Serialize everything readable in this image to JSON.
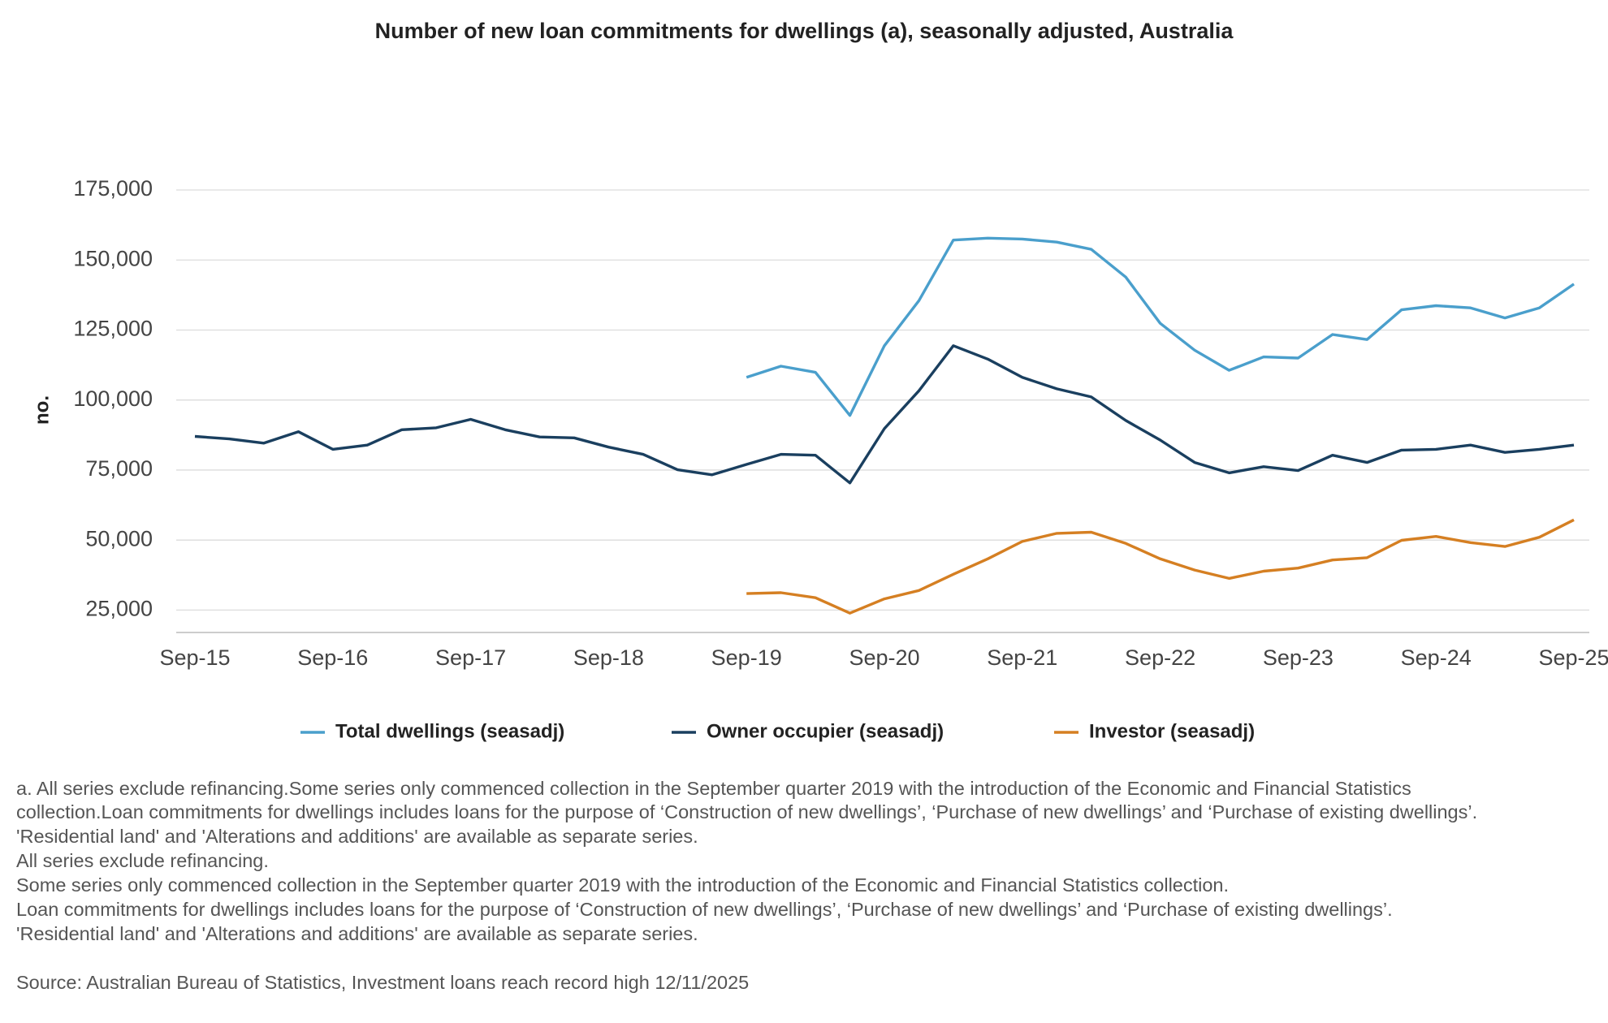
{
  "chart_data": {
    "type": "line",
    "title": "Number of new loan commitments for dwellings (a), seasonally adjusted, Australia",
    "y_label": "no.",
    "categories": [
      "Sep-15",
      null,
      null,
      null,
      "Sep-16",
      null,
      null,
      null,
      "Sep-17",
      null,
      null,
      null,
      "Sep-18",
      null,
      null,
      null,
      "Sep-19",
      null,
      null,
      null,
      "Sep-20",
      null,
      null,
      null,
      "Sep-21",
      null,
      null,
      null,
      "Sep-22",
      null,
      null,
      null,
      "Sep-23",
      null,
      null,
      null,
      "Sep-24",
      null,
      null,
      null,
      "Sep-25"
    ],
    "series": [
      {
        "name": "Total dwellings (seasadj)",
        "color": "#4a9fcc",
        "values": [
          null,
          null,
          null,
          null,
          null,
          null,
          null,
          null,
          null,
          null,
          null,
          null,
          null,
          null,
          null,
          null,
          108100,
          112100,
          109900,
          94500,
          119400,
          135500,
          157100,
          157800,
          157500,
          156400,
          153800,
          143900,
          127400,
          117800,
          110600,
          115400,
          115000,
          123400,
          121600,
          132200,
          133700,
          132900,
          129300,
          132900,
          141400
        ]
      },
      {
        "name": "Owner occupier (seasadj)",
        "color": "#1a3f5f",
        "values": [
          87000,
          86100,
          84600,
          88700,
          82400,
          83900,
          89400,
          90100,
          93100,
          89400,
          86800,
          86500,
          83200,
          80600,
          75100,
          73300,
          77000,
          80600,
          80300,
          70400,
          89800,
          103300,
          119400,
          114600,
          108100,
          104000,
          101100,
          92700,
          85700,
          77700,
          74000,
          76200,
          74800,
          80300,
          77700,
          82100,
          82400,
          83900,
          81300,
          82400,
          83900
        ]
      },
      {
        "name": "Investor (seasadj)",
        "color": "#d57f22",
        "values": [
          null,
          null,
          null,
          null,
          null,
          null,
          null,
          null,
          null,
          null,
          null,
          null,
          null,
          null,
          null,
          null,
          30900,
          31200,
          29400,
          23900,
          29000,
          32000,
          37800,
          43300,
          49500,
          52400,
          52800,
          48800,
          43300,
          39300,
          36300,
          38900,
          40000,
          42900,
          43700,
          49900,
          51300,
          49100,
          47700,
          51000,
          57200
        ]
      }
    ],
    "ylim": [
      17000,
      175000
    ],
    "yticks": [
      {
        "value": 25000,
        "label": "25,000"
      },
      {
        "value": 50000,
        "label": "50,000"
      },
      {
        "value": 75000,
        "label": "75,000"
      },
      {
        "value": 100000,
        "label": "100,000"
      },
      {
        "value": 125000,
        "label": "125,000"
      },
      {
        "value": 150000,
        "label": "150,000"
      },
      {
        "value": 175000,
        "label": "175,000"
      }
    ],
    "grid": true,
    "legend": "bottom",
    "footnotes": [
      "a. All series exclude refinancing.Some series only commenced collection in the September quarter 2019 with the introduction of the Economic and Financial Statistics",
      "collection.Loan commitments for dwellings includes loans for the purpose of ‘Construction of new dwellings’, ‘Purchase of new dwellings’ and ‘Purchase of existing dwellings’.",
      "'Residential land' and 'Alterations and additions' are available as separate series.",
      "All series exclude refinancing.",
      "Some series only commenced collection in the September quarter 2019 with the introduction of the Economic and Financial Statistics collection.",
      "Loan commitments for dwellings includes loans for the purpose of ‘Construction of new dwellings’, ‘Purchase of new dwellings’ and ‘Purchase of existing dwellings’.",
      "'Residential land' and 'Alterations and additions' are available as separate series."
    ],
    "source": "Source: Australian Bureau of Statistics, Investment loans reach record high 12/11/2025"
  }
}
